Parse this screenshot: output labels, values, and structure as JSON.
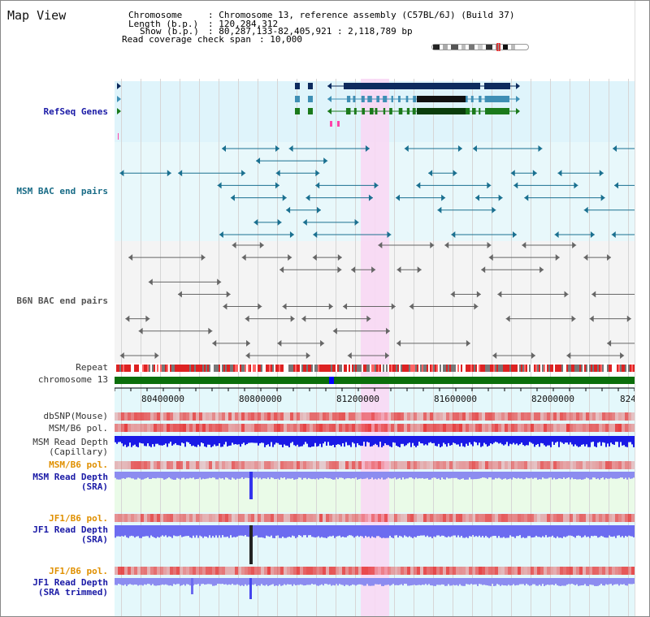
{
  "map_title": "Map View",
  "header": {
    "chromosome_key": "Chromosome",
    "chromosome_value": ": Chromosome 13, reference assembly (C57BL/6J) (Build 37)",
    "length_key": "Length (b.p.)",
    "length_value": ": 120,284,312",
    "show_key": "Show (b.p.)",
    "show_value": ": 80,287,133-82,405,921 : 2,118,789 bp",
    "coverage_key": "Read coverage check span",
    "coverage_value": ": 10,000"
  },
  "tracks": {
    "refseq": "RefSeq Genes",
    "msm_bac": "MSM BAC end pairs",
    "b6n_bac": "B6N BAC end pairs",
    "repeat": "Repeat",
    "chromosome": "chromosome 13",
    "dbsnp": "dbSNP(Mouse)",
    "msm_b6_pol_1": "MSM/B6 pol.",
    "msm_depth_cap": "MSM Read Depth\n(Capillary)",
    "msm_b6_pol_2": "MSM/B6 pol.",
    "msm_depth_sra": "MSM Read Depth\n(SRA)",
    "jf1_b6_pol_1": "JF1/B6 pol.",
    "jf1_depth_sra": "JF1 Read Depth\n(SRA)",
    "jf1_b6_pol_2": "JF1/B6 pol.",
    "jf1_depth_trim": "JF1 Read Depth\n(SRA trimmed)"
  },
  "ruler": {
    "ticks": [
      "80400000",
      "80800000",
      "81200000",
      "81600000",
      "82000000",
      "824"
    ]
  },
  "colors": {
    "refseq_bg": "#dff4fb",
    "msm_bg": "#e8f8fb",
    "highlight": "#f8d8f4",
    "gene_navy": "#0d2b5e",
    "gene_teal": "#3f8fb5",
    "gene_green": "#1b7a1b",
    "chrom_green": "#0b6e0b",
    "depth_blue": "#1a1ae6",
    "depth_light": "#8c8cf0"
  }
}
